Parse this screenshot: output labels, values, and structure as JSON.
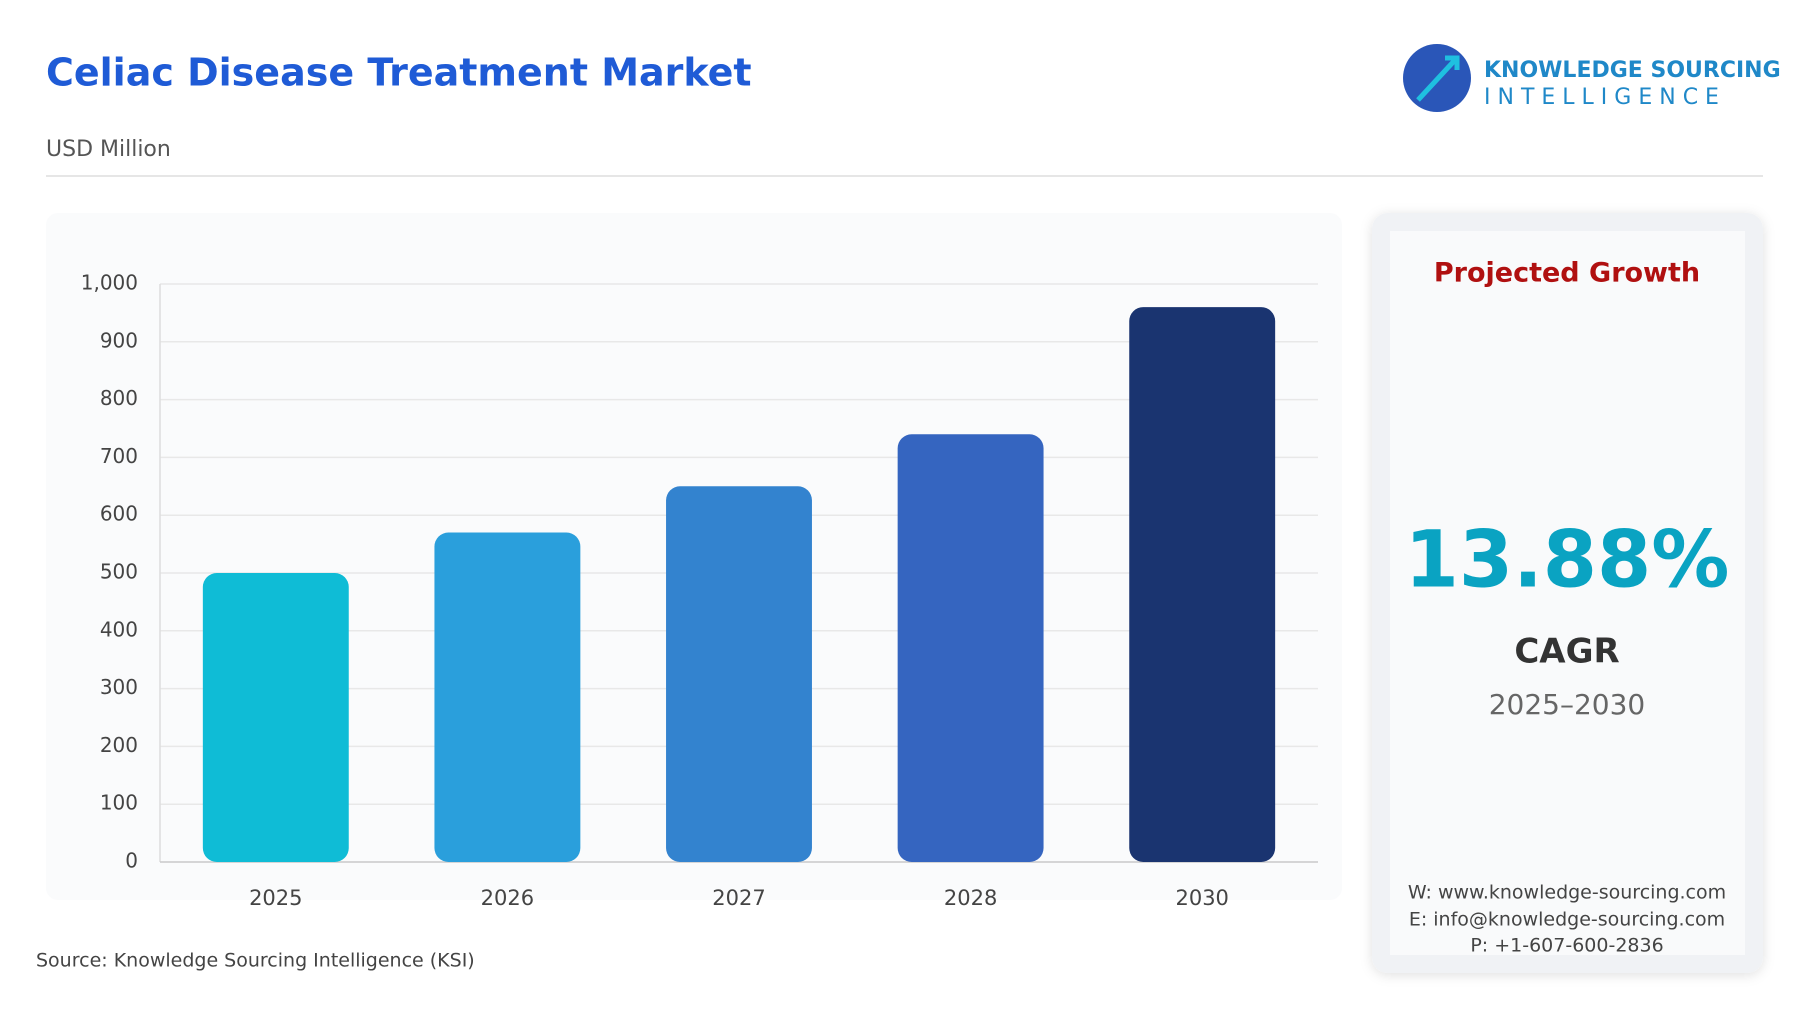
{
  "chart_data": {
    "type": "bar",
    "title": "Celiac Disease Treatment Market",
    "subtitle": "USD Million",
    "categories": [
      "2025",
      "2026",
      "2027",
      "2028",
      "2030"
    ],
    "values": [
      500,
      570,
      650,
      740,
      960
    ],
    "colors": [
      "#0fbcd6",
      "#2a9fdc",
      "#3383cf",
      "#3565c0",
      "#1a3470"
    ],
    "ylim": [
      0,
      1000
    ],
    "yticks": [
      0,
      100,
      200,
      300,
      400,
      500,
      600,
      700,
      800,
      900,
      {
        "value": 1000,
        "label": "1,000"
      }
    ],
    "grid": true,
    "source": "Source: Knowledge Sourcing Intelligence (KSI)"
  },
  "logo": {
    "line1": "KNOWLEDGE SOURCING",
    "line2": "INTELLIGENCE"
  },
  "panel": {
    "heading": "Projected Growth",
    "value": "13.88%",
    "metric": "CAGR",
    "period": "2025–2030",
    "contacts": [
      "W: www.knowledge-sourcing.com",
      "E: info@knowledge-sourcing.com",
      "P: +1-607-600-2836"
    ]
  }
}
